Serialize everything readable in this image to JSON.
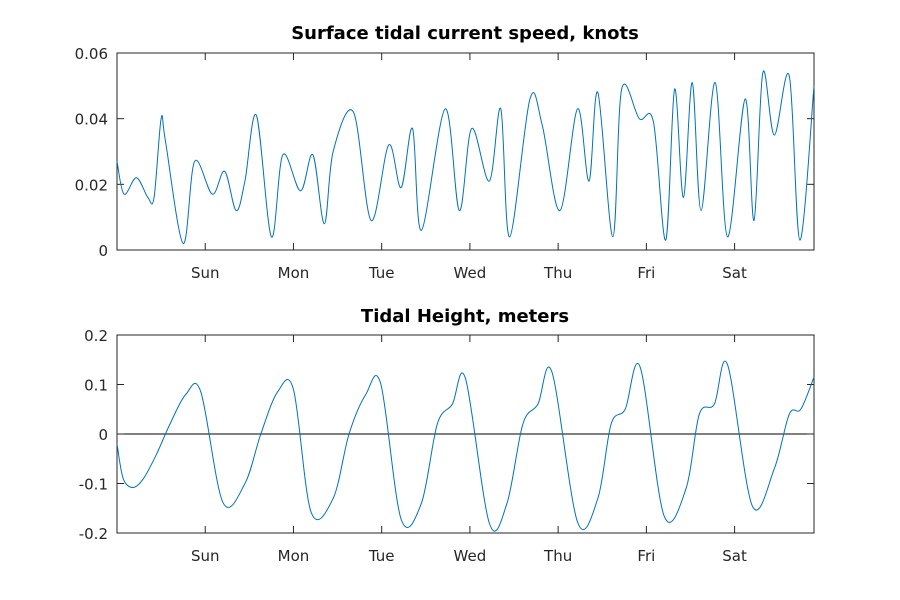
{
  "chart_data": [
    {
      "type": "line",
      "title": "Surface tidal current speed, knots",
      "xlabel": "",
      "ylabel": "",
      "xlim": [
        0,
        7.9
      ],
      "ylim": [
        0,
        0.06
      ],
      "yticks": [
        0,
        0.02,
        0.04,
        0.06
      ],
      "ytick_labels": [
        "0",
        "0.02",
        "0.04",
        "0.06"
      ],
      "xticks": [
        1,
        2,
        3,
        4,
        5,
        6,
        7
      ],
      "xtick_labels": [
        "Sun",
        "Mon",
        "Tue",
        "Wed",
        "Thu",
        "Fri",
        "Sat"
      ],
      "color": "#0072BD",
      "series": [
        {
          "x": [
            0,
            0.08,
            0.22,
            0.35,
            0.42,
            0.5,
            0.55,
            0.75,
            0.88,
            1.08,
            1.22,
            1.35,
            1.45,
            1.58,
            1.75,
            1.88,
            2.08,
            2.22,
            2.35,
            2.45,
            2.68,
            2.88,
            3.08,
            3.22,
            3.35,
            3.45,
            3.72,
            3.88,
            4.02,
            4.22,
            4.35,
            4.45,
            4.68,
            4.82,
            5.02,
            5.22,
            5.35,
            5.45,
            5.62,
            5.72,
            5.92,
            6.08,
            6.22,
            6.32,
            6.42,
            6.52,
            6.62,
            6.78,
            6.92,
            7.12,
            7.22,
            7.32,
            7.45,
            7.62,
            7.74,
            7.9
          ],
          "y": [
            0.027,
            0.017,
            0.022,
            0.016,
            0.016,
            0.04,
            0.033,
            0.002,
            0.027,
            0.017,
            0.024,
            0.012,
            0.021,
            0.041,
            0.004,
            0.029,
            0.018,
            0.029,
            0.008,
            0.03,
            0.042,
            0.009,
            0.032,
            0.019,
            0.037,
            0.006,
            0.043,
            0.012,
            0.037,
            0.021,
            0.043,
            0.004,
            0.046,
            0.038,
            0.012,
            0.043,
            0.021,
            0.048,
            0.004,
            0.049,
            0.04,
            0.039,
            0.003,
            0.049,
            0.016,
            0.051,
            0.012,
            0.051,
            0.004,
            0.046,
            0.009,
            0.054,
            0.035,
            0.053,
            0.003,
            0.05
          ]
        }
      ]
    },
    {
      "type": "line",
      "title": "Tidal Height, meters",
      "xlabel": "",
      "ylabel": "",
      "xlim": [
        0,
        7.9
      ],
      "ylim": [
        -0.2,
        0.2
      ],
      "yticks": [
        -0.2,
        -0.1,
        0,
        0.1,
        0.2
      ],
      "ytick_labels": [
        "-0.2",
        "-0.1",
        "0",
        "0.1",
        "0.2"
      ],
      "xticks": [
        1,
        2,
        3,
        4,
        5,
        6,
        7
      ],
      "xtick_labels": [
        "Sun",
        "Mon",
        "Tue",
        "Wed",
        "Thu",
        "Fri",
        "Sat"
      ],
      "zero_line": true,
      "color": "#0072BD",
      "series": [
        {
          "x": [
            0,
            0.07,
            0.18,
            0.3,
            0.45,
            0.6,
            0.78,
            0.95,
            1.2,
            1.45,
            1.63,
            1.82,
            2.0,
            2.2,
            2.45,
            2.63,
            2.82,
            2.99,
            3.22,
            3.45,
            3.63,
            3.8,
            3.95,
            4.22,
            4.42,
            4.6,
            4.77,
            4.93,
            5.22,
            5.45,
            5.6,
            5.76,
            5.93,
            6.2,
            6.45,
            6.6,
            6.77,
            6.92,
            7.2,
            7.45,
            7.62,
            7.75,
            7.9
          ],
          "y": [
            -0.02,
            -0.09,
            -0.108,
            -0.09,
            -0.04,
            0.02,
            0.08,
            0.085,
            -0.138,
            -0.1,
            0.0,
            0.085,
            0.09,
            -0.158,
            -0.13,
            0.0,
            0.08,
            0.101,
            -0.172,
            -0.14,
            0.02,
            0.06,
            0.112,
            -0.18,
            -0.14,
            0.02,
            0.06,
            0.125,
            -0.178,
            -0.13,
            0.02,
            0.05,
            0.135,
            -0.165,
            -0.11,
            0.04,
            0.06,
            0.14,
            -0.145,
            -0.07,
            0.04,
            0.05,
            0.115
          ]
        }
      ]
    }
  ]
}
